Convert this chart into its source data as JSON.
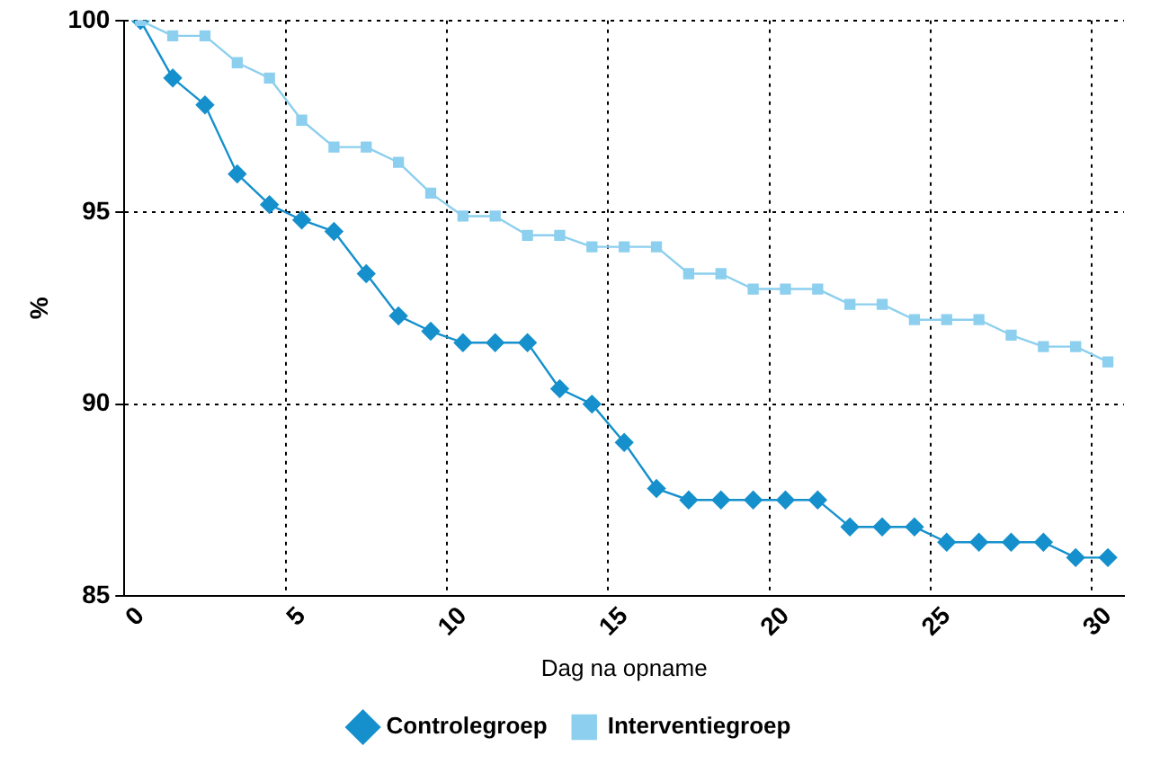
{
  "chart_data": {
    "type": "line",
    "xlabel": "Dag na opname",
    "ylabel": "%",
    "categories": [
      "0",
      null,
      null,
      null,
      null,
      "5",
      null,
      null,
      null,
      null,
      "10",
      null,
      null,
      null,
      null,
      "15",
      null,
      null,
      null,
      null,
      "20",
      null,
      null,
      null,
      null,
      "25",
      null,
      null,
      null,
      null,
      "30"
    ],
    "series": [
      {
        "name": "Controlegroep",
        "color": "#1590cc",
        "marker": "diamond",
        "values": [
          100,
          98.5,
          97.8,
          96.0,
          95.2,
          94.8,
          94.5,
          93.4,
          92.3,
          91.9,
          91.6,
          91.6,
          91.6,
          90.4,
          90.0,
          89.0,
          87.8,
          87.5,
          87.5,
          87.5,
          87.5,
          87.5,
          86.8,
          86.8,
          86.8,
          86.4,
          86.4,
          86.4,
          86.4,
          86.0,
          86.0
        ]
      },
      {
        "name": "Interventiegroep",
        "color": "#8ccfee",
        "marker": "square",
        "values": [
          100,
          99.6,
          99.6,
          98.9,
          98.5,
          97.4,
          96.7,
          96.7,
          96.3,
          95.5,
          94.9,
          94.9,
          94.4,
          94.4,
          94.1,
          94.1,
          94.1,
          93.4,
          93.4,
          93.0,
          93.0,
          93.0,
          92.6,
          92.6,
          92.2,
          92.2,
          92.2,
          91.8,
          91.5,
          91.5,
          91.1
        ]
      }
    ],
    "ylim": [
      85,
      100
    ],
    "yticks": [
      85,
      90,
      95,
      100
    ],
    "grid": true,
    "legend": "bottom",
    "line_style": "solid"
  }
}
